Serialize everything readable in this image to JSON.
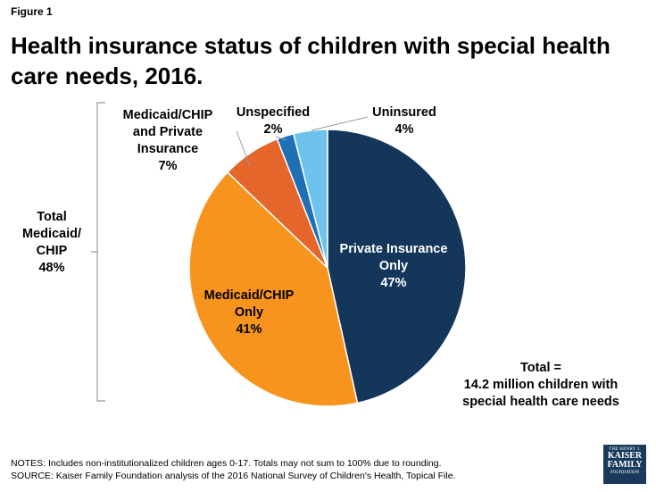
{
  "figure_label": "Figure 1",
  "title": "Health insurance status of children with special health care needs, 2016.",
  "chart_data": {
    "type": "pie",
    "title": "Health insurance status of children with special health care needs, 2016.",
    "slices": [
      {
        "name": "Private Insurance Only",
        "label_lines": [
          "Private Insurance",
          "Only"
        ],
        "value": 47,
        "value_label": "47%",
        "color": "#14365a"
      },
      {
        "name": "Medicaid/CHIP Only",
        "label_lines": [
          "Medicaid/CHIP",
          "Only"
        ],
        "value": 41,
        "value_label": "41%",
        "color": "#f7941d"
      },
      {
        "name": "Medicaid/CHIP and Private Insurance",
        "label_lines": [
          "Medicaid/CHIP",
          "and Private",
          "Insurance"
        ],
        "value": 7,
        "value_label": "7%",
        "color": "#e4662a"
      },
      {
        "name": "Unspecified",
        "label_lines": [
          "Unspecified"
        ],
        "value": 2,
        "value_label": "2%",
        "color": "#1f6fb4"
      },
      {
        "name": "Uninsured",
        "label_lines": [
          "Uninsured"
        ],
        "value": 4,
        "value_label": "4%",
        "color": "#6ec3ee"
      }
    ],
    "bracket_label": {
      "lines": [
        "Total",
        "Medicaid/",
        "CHIP"
      ],
      "value": "48%"
    },
    "total_note": [
      "Total =",
      "14.2 million children with",
      "special health care needs"
    ]
  },
  "notes": "NOTES: Includes non-institutionalized children ages 0-17. Totals may not sum to 100% due to rounding.",
  "source": "SOURCE: Kaiser Family Foundation analysis of the 2016 National Survey of Children's Health, Topical File.",
  "logo": {
    "line1": "THE HENRY J.",
    "line2": "KAISER",
    "line3": "FAMILY",
    "line4": "FOUNDATION"
  }
}
